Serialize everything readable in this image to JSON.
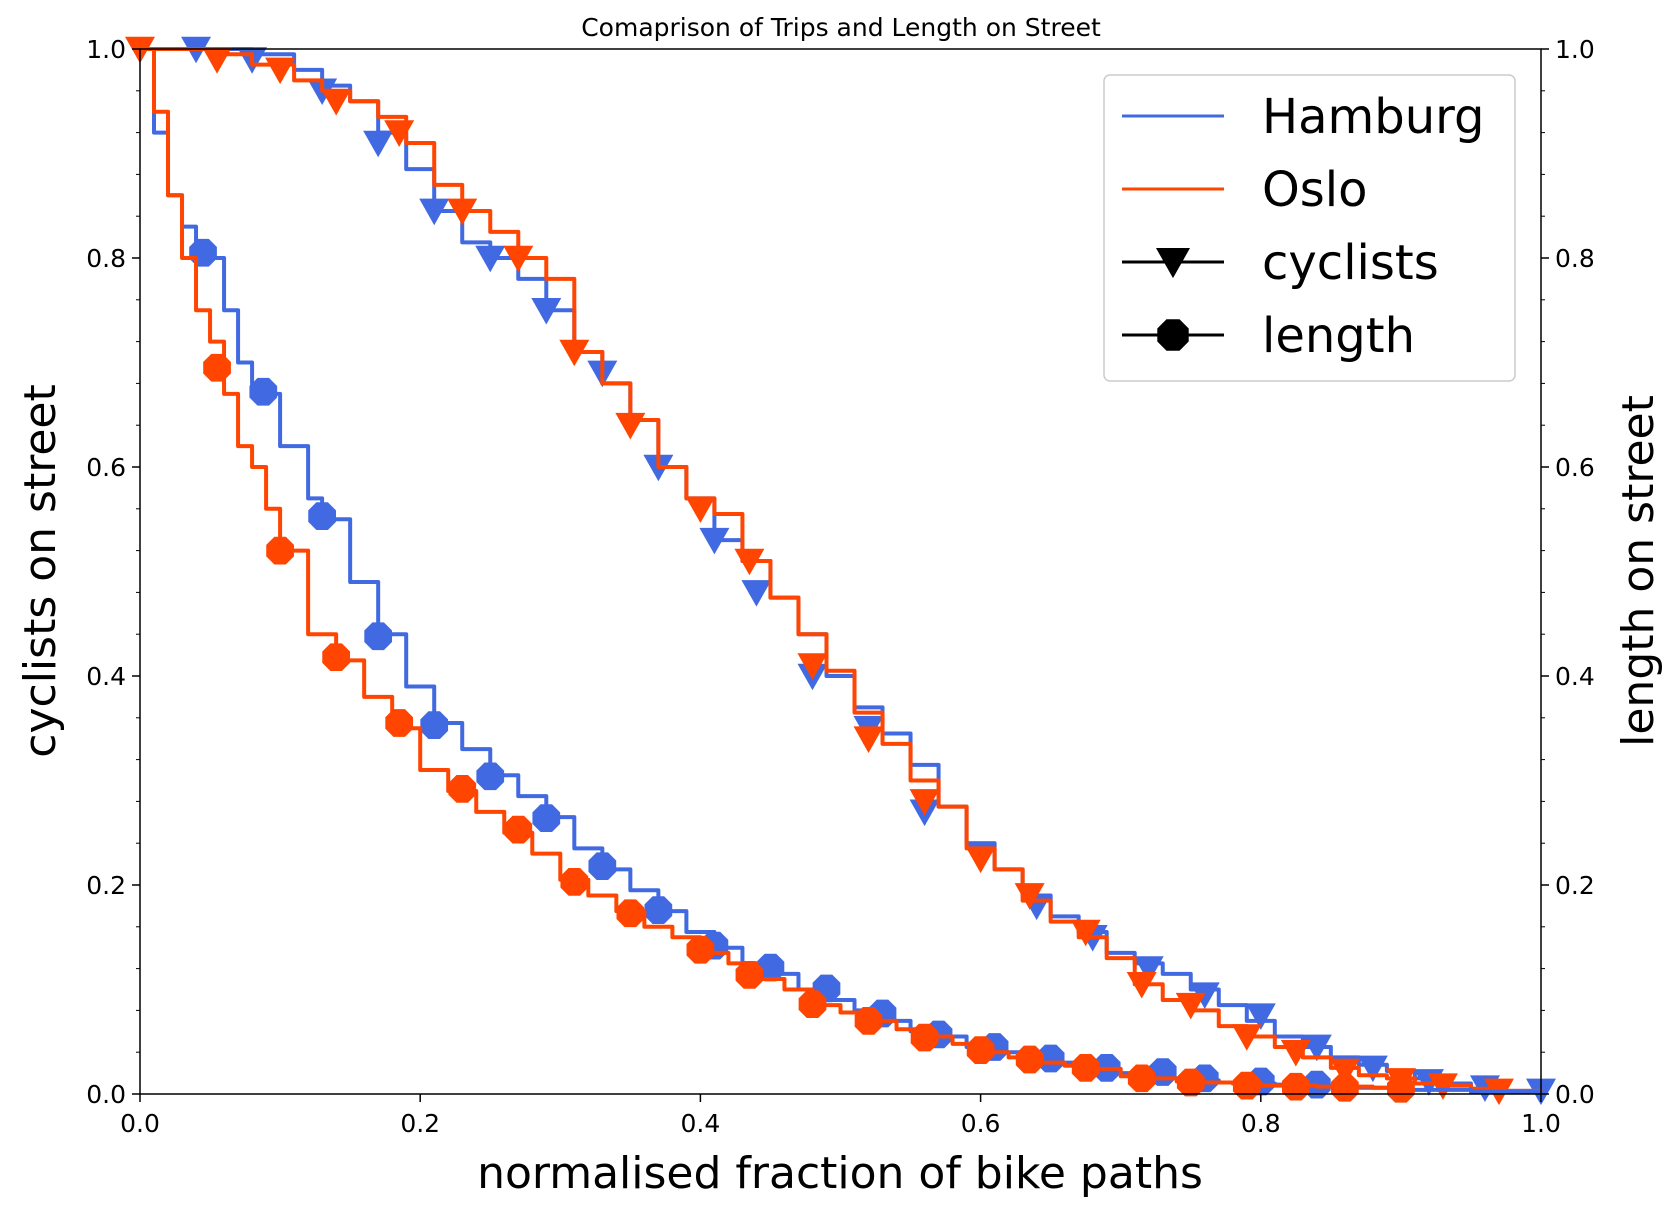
{
  "chart_data": {
    "type": "line",
    "title": "Comaprison of Trips and Length on Street",
    "xlabel": "normalised fraction of bike paths",
    "ylabel": "cyclists on street",
    "ylabel_right": "length on street",
    "xlim": [
      0,
      1
    ],
    "ylim": [
      0,
      1
    ],
    "ylim_right": [
      0,
      1
    ],
    "x_ticks": [
      "0.0",
      "0.2",
      "0.4",
      "0.6",
      "0.8",
      "1.0"
    ],
    "y_ticks": [
      "0.0",
      "0.2",
      "0.4",
      "0.6",
      "0.8",
      "1.0"
    ],
    "y_ticks_right": [
      "0.0",
      "0.2",
      "0.4",
      "0.6",
      "0.8",
      "1.0"
    ],
    "grid": false,
    "legend_position": "top-right",
    "legend": [
      {
        "label": "Hamburg",
        "kind": "line",
        "color": "#4169e1"
      },
      {
        "label": "Oslo",
        "kind": "line",
        "color": "#ff4500"
      },
      {
        "label": "cyclists",
        "kind": "marker",
        "marker": "triangle-down",
        "color": "#000000"
      },
      {
        "label": "length",
        "kind": "marker",
        "marker": "octagon",
        "color": "#000000"
      }
    ],
    "series": [
      {
        "city": "Hamburg",
        "metric": "cyclists",
        "color": "#4169e1",
        "marker": "triangle-down",
        "x": [
          0.0,
          0.02,
          0.05,
          0.08,
          0.11,
          0.13,
          0.15,
          0.17,
          0.19,
          0.21,
          0.23,
          0.25,
          0.27,
          0.29,
          0.31,
          0.33,
          0.35,
          0.37,
          0.39,
          0.41,
          0.43,
          0.45,
          0.47,
          0.49,
          0.51,
          0.53,
          0.55,
          0.57,
          0.59,
          0.61,
          0.63,
          0.65,
          0.67,
          0.69,
          0.71,
          0.73,
          0.75,
          0.77,
          0.79,
          0.81,
          0.83,
          0.85,
          0.87,
          0.89,
          0.91,
          0.93,
          0.95,
          0.97,
          1.0
        ],
        "y": [
          1.0,
          1.0,
          1.0,
          0.995,
          0.98,
          0.965,
          0.95,
          0.92,
          0.885,
          0.845,
          0.815,
          0.8,
          0.78,
          0.75,
          0.71,
          0.68,
          0.645,
          0.6,
          0.57,
          0.53,
          0.51,
          0.475,
          0.44,
          0.4,
          0.37,
          0.345,
          0.315,
          0.275,
          0.24,
          0.215,
          0.19,
          0.17,
          0.155,
          0.135,
          0.125,
          0.115,
          0.1,
          0.085,
          0.07,
          0.055,
          0.045,
          0.035,
          0.028,
          0.022,
          0.015,
          0.01,
          0.005,
          0.003,
          0.0
        ],
        "markers_x": [
          0.04,
          0.08,
          0.13,
          0.17,
          0.21,
          0.25,
          0.29,
          0.33,
          0.37,
          0.41,
          0.44,
          0.48,
          0.52,
          0.56,
          0.6,
          0.64,
          0.68,
          0.72,
          0.76,
          0.8,
          0.84,
          0.88,
          0.92,
          0.96,
          1.0
        ],
        "markers_y": [
          1.0,
          0.99,
          0.96,
          0.91,
          0.845,
          0.8,
          0.75,
          0.69,
          0.6,
          0.53,
          0.48,
          0.4,
          0.35,
          0.27,
          0.23,
          0.18,
          0.15,
          0.12,
          0.095,
          0.075,
          0.045,
          0.025,
          0.012,
          0.006,
          0.003
        ]
      },
      {
        "city": "Oslo",
        "metric": "cyclists",
        "color": "#ff4500",
        "marker": "triangle-down",
        "x": [
          0.0,
          0.02,
          0.05,
          0.08,
          0.11,
          0.13,
          0.15,
          0.17,
          0.19,
          0.21,
          0.23,
          0.25,
          0.27,
          0.29,
          0.31,
          0.33,
          0.35,
          0.37,
          0.39,
          0.41,
          0.43,
          0.45,
          0.47,
          0.49,
          0.51,
          0.53,
          0.55,
          0.57,
          0.59,
          0.61,
          0.63,
          0.65,
          0.67,
          0.69,
          0.71,
          0.73,
          0.75,
          0.77,
          0.79,
          0.81,
          0.83,
          0.85,
          0.87,
          0.89,
          0.91,
          0.93,
          0.95,
          0.97,
          1.0
        ],
        "y": [
          1.0,
          1.0,
          0.995,
          0.985,
          0.97,
          0.96,
          0.95,
          0.935,
          0.91,
          0.87,
          0.845,
          0.825,
          0.8,
          0.78,
          0.71,
          0.68,
          0.645,
          0.6,
          0.57,
          0.555,
          0.51,
          0.475,
          0.44,
          0.405,
          0.365,
          0.335,
          0.3,
          0.275,
          0.235,
          0.215,
          0.185,
          0.165,
          0.15,
          0.13,
          0.105,
          0.09,
          0.08,
          0.065,
          0.055,
          0.045,
          0.035,
          0.025,
          0.018,
          0.015,
          0.01,
          0.008,
          0.005,
          0.003,
          0.0
        ],
        "markers_x": [
          0.0,
          0.055,
          0.1,
          0.14,
          0.185,
          0.23,
          0.27,
          0.31,
          0.35,
          0.4,
          0.435,
          0.48,
          0.52,
          0.56,
          0.6,
          0.635,
          0.675,
          0.715,
          0.75,
          0.79,
          0.825,
          0.86,
          0.9,
          0.93,
          0.97
        ],
        "markers_y": [
          1.0,
          0.99,
          0.98,
          0.95,
          0.92,
          0.845,
          0.8,
          0.71,
          0.64,
          0.56,
          0.51,
          0.41,
          0.34,
          0.28,
          0.225,
          0.19,
          0.155,
          0.105,
          0.085,
          0.055,
          0.04,
          0.022,
          0.013,
          0.008,
          0.003
        ]
      },
      {
        "city": "Hamburg",
        "metric": "length",
        "color": "#4169e1",
        "marker": "octagon",
        "x": [
          0.0,
          0.01,
          0.02,
          0.03,
          0.04,
          0.06,
          0.07,
          0.08,
          0.1,
          0.12,
          0.13,
          0.15,
          0.17,
          0.19,
          0.21,
          0.23,
          0.25,
          0.27,
          0.29,
          0.31,
          0.33,
          0.35,
          0.37,
          0.39,
          0.41,
          0.43,
          0.45,
          0.47,
          0.49,
          0.51,
          0.53,
          0.55,
          0.57,
          0.59,
          0.61,
          0.63,
          0.65,
          0.67,
          0.69,
          0.71,
          0.73,
          0.75,
          0.77,
          0.79,
          0.81,
          0.83,
          0.85,
          0.87,
          0.9,
          0.95,
          1.0
        ],
        "y": [
          1.0,
          0.92,
          0.86,
          0.83,
          0.8,
          0.75,
          0.7,
          0.67,
          0.62,
          0.57,
          0.55,
          0.49,
          0.44,
          0.39,
          0.355,
          0.33,
          0.305,
          0.285,
          0.265,
          0.235,
          0.215,
          0.195,
          0.175,
          0.155,
          0.14,
          0.125,
          0.115,
          0.1,
          0.09,
          0.08,
          0.07,
          0.06,
          0.055,
          0.045,
          0.04,
          0.035,
          0.03,
          0.025,
          0.02,
          0.018,
          0.015,
          0.013,
          0.011,
          0.01,
          0.009,
          0.008,
          0.007,
          0.006,
          0.004,
          0.002,
          0.0
        ],
        "markers_x": [
          0.045,
          0.088,
          0.13,
          0.17,
          0.21,
          0.25,
          0.29,
          0.33,
          0.37,
          0.41,
          0.45,
          0.49,
          0.53,
          0.57,
          0.61,
          0.65,
          0.69,
          0.73,
          0.76,
          0.8,
          0.84
        ],
        "markers_y": [
          0.805,
          0.672,
          0.553,
          0.438,
          0.353,
          0.304,
          0.264,
          0.218,
          0.176,
          0.142,
          0.121,
          0.101,
          0.077,
          0.057,
          0.045,
          0.034,
          0.025,
          0.021,
          0.015,
          0.012,
          0.009
        ]
      },
      {
        "city": "Oslo",
        "metric": "length",
        "color": "#ff4500",
        "marker": "octagon",
        "x": [
          0.0,
          0.01,
          0.02,
          0.03,
          0.04,
          0.05,
          0.06,
          0.07,
          0.08,
          0.09,
          0.1,
          0.12,
          0.14,
          0.16,
          0.18,
          0.2,
          0.22,
          0.24,
          0.26,
          0.28,
          0.3,
          0.32,
          0.34,
          0.36,
          0.38,
          0.4,
          0.42,
          0.44,
          0.46,
          0.48,
          0.5,
          0.52,
          0.54,
          0.56,
          0.58,
          0.6,
          0.62,
          0.64,
          0.66,
          0.68,
          0.7,
          0.72,
          0.74,
          0.76,
          0.78,
          0.8,
          0.82,
          0.84,
          0.86,
          0.88,
          0.9
        ],
        "y": [
          1.0,
          0.94,
          0.86,
          0.8,
          0.75,
          0.72,
          0.67,
          0.62,
          0.6,
          0.56,
          0.52,
          0.44,
          0.415,
          0.38,
          0.35,
          0.31,
          0.29,
          0.27,
          0.25,
          0.23,
          0.205,
          0.19,
          0.175,
          0.16,
          0.15,
          0.135,
          0.125,
          0.11,
          0.1,
          0.085,
          0.078,
          0.07,
          0.062,
          0.055,
          0.048,
          0.04,
          0.035,
          0.03,
          0.027,
          0.024,
          0.017,
          0.015,
          0.012,
          0.011,
          0.01,
          0.008,
          0.008,
          0.007,
          0.007,
          0.006,
          0.006
        ],
        "markers_x": [
          0.055,
          0.1,
          0.14,
          0.185,
          0.23,
          0.27,
          0.31,
          0.35,
          0.4,
          0.435,
          0.48,
          0.52,
          0.56,
          0.6,
          0.635,
          0.675,
          0.715,
          0.75,
          0.79,
          0.825,
          0.86,
          0.9
        ],
        "markers_y": [
          0.695,
          0.52,
          0.418,
          0.355,
          0.292,
          0.253,
          0.203,
          0.173,
          0.138,
          0.114,
          0.086,
          0.07,
          0.054,
          0.042,
          0.033,
          0.025,
          0.015,
          0.011,
          0.008,
          0.007,
          0.006,
          0.005
        ]
      }
    ]
  }
}
